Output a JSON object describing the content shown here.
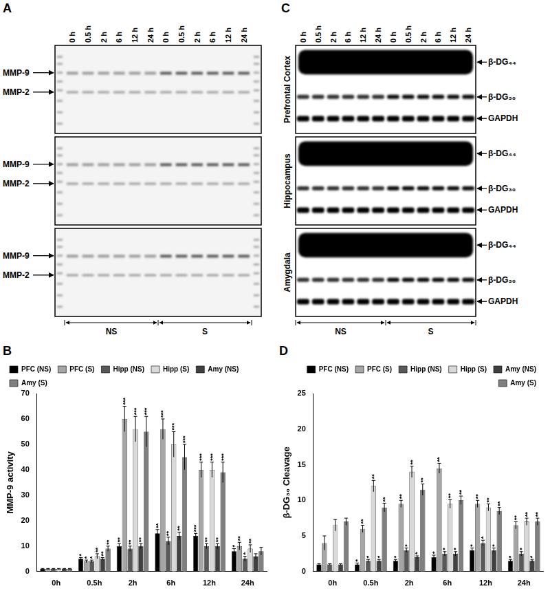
{
  "blots": [
    {
      "label": "A",
      "lanes": [
        "0 h",
        "0.5 h",
        "2 h",
        "6 h",
        "12 h",
        "24 h",
        "0 h",
        "0.5 h",
        "2 h",
        "6 h",
        "12 h",
        "24 h"
      ],
      "groups": [
        "NS",
        "S"
      ],
      "regions": [],
      "bands": [
        "MMP-9",
        "MMP-2"
      ]
    },
    {
      "label": "C",
      "lanes": [
        "0 h",
        "0.5 h",
        "2 h",
        "6 h",
        "12 h",
        "24 h",
        "0 h",
        "0.5 h",
        "2 h",
        "6 h",
        "12 h",
        "24 h"
      ],
      "groups": [
        "NS",
        "S"
      ],
      "regions": [
        "Prefrontal Cortex",
        "Hippocampus",
        "Amygdala"
      ],
      "bands": [
        "β-DG₄₄",
        "β-DG₃₀",
        "GAPDH"
      ]
    }
  ],
  "chart_labels": [
    "B",
    "D"
  ],
  "chart_data": [
    {
      "type": "bar",
      "y_label": "MMP-9 activity",
      "categories": [
        "0h",
        "0.5h",
        "2h",
        "6h",
        "12h",
        "24h"
      ],
      "ylim": [
        0,
        70
      ],
      "yticks": [
        0,
        10,
        20,
        30,
        40,
        50,
        60,
        70
      ],
      "grid": false,
      "legend": "upper left",
      "series": [
        {
          "name": "PFC (NS)",
          "color": "#000000",
          "values": [
            1,
            5,
            10,
            15,
            14,
            8
          ],
          "errors": [
            0.2,
            0.5,
            1,
            1.5,
            1,
            1
          ],
          "annotations": [
            null,
            "*",
            "**",
            "**",
            "***",
            "*"
          ]
        },
        {
          "name": "PFC (S)",
          "color": "#a6a6a6",
          "values": [
            1,
            4,
            60,
            56,
            40,
            10
          ],
          "errors": [
            0.2,
            0.5,
            5,
            4,
            3,
            1.5
          ],
          "annotations": [
            null,
            "*",
            "***",
            "***",
            "***",
            "**"
          ]
        },
        {
          "name": "Hipp (NS)",
          "color": "#595959",
          "values": [
            1,
            4,
            9,
            12,
            10,
            5
          ],
          "errors": [
            0.2,
            0.5,
            1,
            1.5,
            1,
            1
          ],
          "annotations": [
            null,
            "*",
            "**",
            "**",
            "**",
            "*"
          ]
        },
        {
          "name": "Hipp (S)",
          "color": "#d9d9d9",
          "values": [
            1,
            6,
            56,
            50,
            40,
            9
          ],
          "errors": [
            0.2,
            1,
            5,
            5,
            3,
            1.5
          ],
          "annotations": [
            null,
            "**",
            "***",
            "***",
            "***",
            "**"
          ]
        },
        {
          "name": "Amy (NS)",
          "color": "#404040",
          "values": [
            1,
            5,
            10,
            14,
            10,
            6
          ],
          "errors": [
            0.2,
            0.5,
            1,
            1.5,
            1,
            1
          ],
          "annotations": [
            null,
            "**",
            "**",
            "**",
            "**",
            null
          ]
        },
        {
          "name": "Amy (S)",
          "color": "#7f7f7f",
          "values": [
            1,
            9,
            55,
            45,
            39,
            8
          ],
          "errors": [
            0.2,
            1,
            6,
            5,
            4,
            1.5
          ],
          "annotations": [
            null,
            "**",
            "***",
            "***",
            "***",
            null
          ]
        }
      ]
    },
    {
      "type": "bar",
      "y_label": "β-DG₃₀ Cleavage",
      "categories": [
        "0h",
        "0.5h",
        "2h",
        "6h",
        "12h",
        "24h"
      ],
      "ylim": [
        0,
        25
      ],
      "yticks": [
        0,
        5,
        10,
        15,
        20,
        25
      ],
      "grid": false,
      "legend": "upper right",
      "series": [
        {
          "name": "PFC (NS)",
          "color": "#000000",
          "values": [
            1,
            1,
            1.5,
            2,
            3,
            1.5
          ],
          "errors": [
            0.1,
            0.2,
            0.2,
            0.3,
            0.3,
            0.2
          ],
          "annotations": [
            null,
            "*",
            "*",
            "*",
            "*",
            "*"
          ]
        },
        {
          "name": "PFC (S)",
          "color": "#a6a6a6",
          "values": [
            4,
            6,
            9.5,
            14.5,
            9.5,
            6.5
          ],
          "errors": [
            1,
            0.5,
            0.5,
            0.7,
            0.5,
            0.5
          ],
          "annotations": [
            null,
            "**",
            "**",
            "**",
            "**",
            "**"
          ]
        },
        {
          "name": "Hipp (NS)",
          "color": "#595959",
          "values": [
            1,
            1.5,
            3,
            2.5,
            4,
            2.5
          ],
          "errors": [
            0.1,
            0.2,
            0.3,
            0.3,
            0.4,
            0.3
          ],
          "annotations": [
            null,
            "*",
            "*",
            "*",
            "*",
            "*"
          ]
        },
        {
          "name": "Hipp (S)",
          "color": "#d9d9d9",
          "values": [
            6.5,
            12,
            14,
            9.5,
            9,
            7
          ],
          "errors": [
            0.8,
            0.8,
            0.8,
            0.6,
            0.5,
            0.5
          ],
          "annotations": [
            null,
            "**",
            "**",
            "**",
            "**",
            "**"
          ]
        },
        {
          "name": "Amy (NS)",
          "color": "#404040",
          "values": [
            1,
            1.5,
            2,
            2.5,
            3,
            1.5
          ],
          "errors": [
            0.1,
            0.2,
            0.2,
            0.3,
            0.3,
            0.2
          ],
          "annotations": [
            null,
            "*",
            "*",
            "*",
            "*",
            "*"
          ]
        },
        {
          "name": "Amy (S)",
          "color": "#7f7f7f",
          "values": [
            7,
            9,
            11.5,
            10,
            8.5,
            7
          ],
          "errors": [
            0.5,
            0.6,
            0.8,
            0.6,
            0.5,
            0.5
          ],
          "annotations": [
            null,
            "**",
            "**",
            "**",
            "**",
            "**"
          ]
        }
      ]
    }
  ]
}
